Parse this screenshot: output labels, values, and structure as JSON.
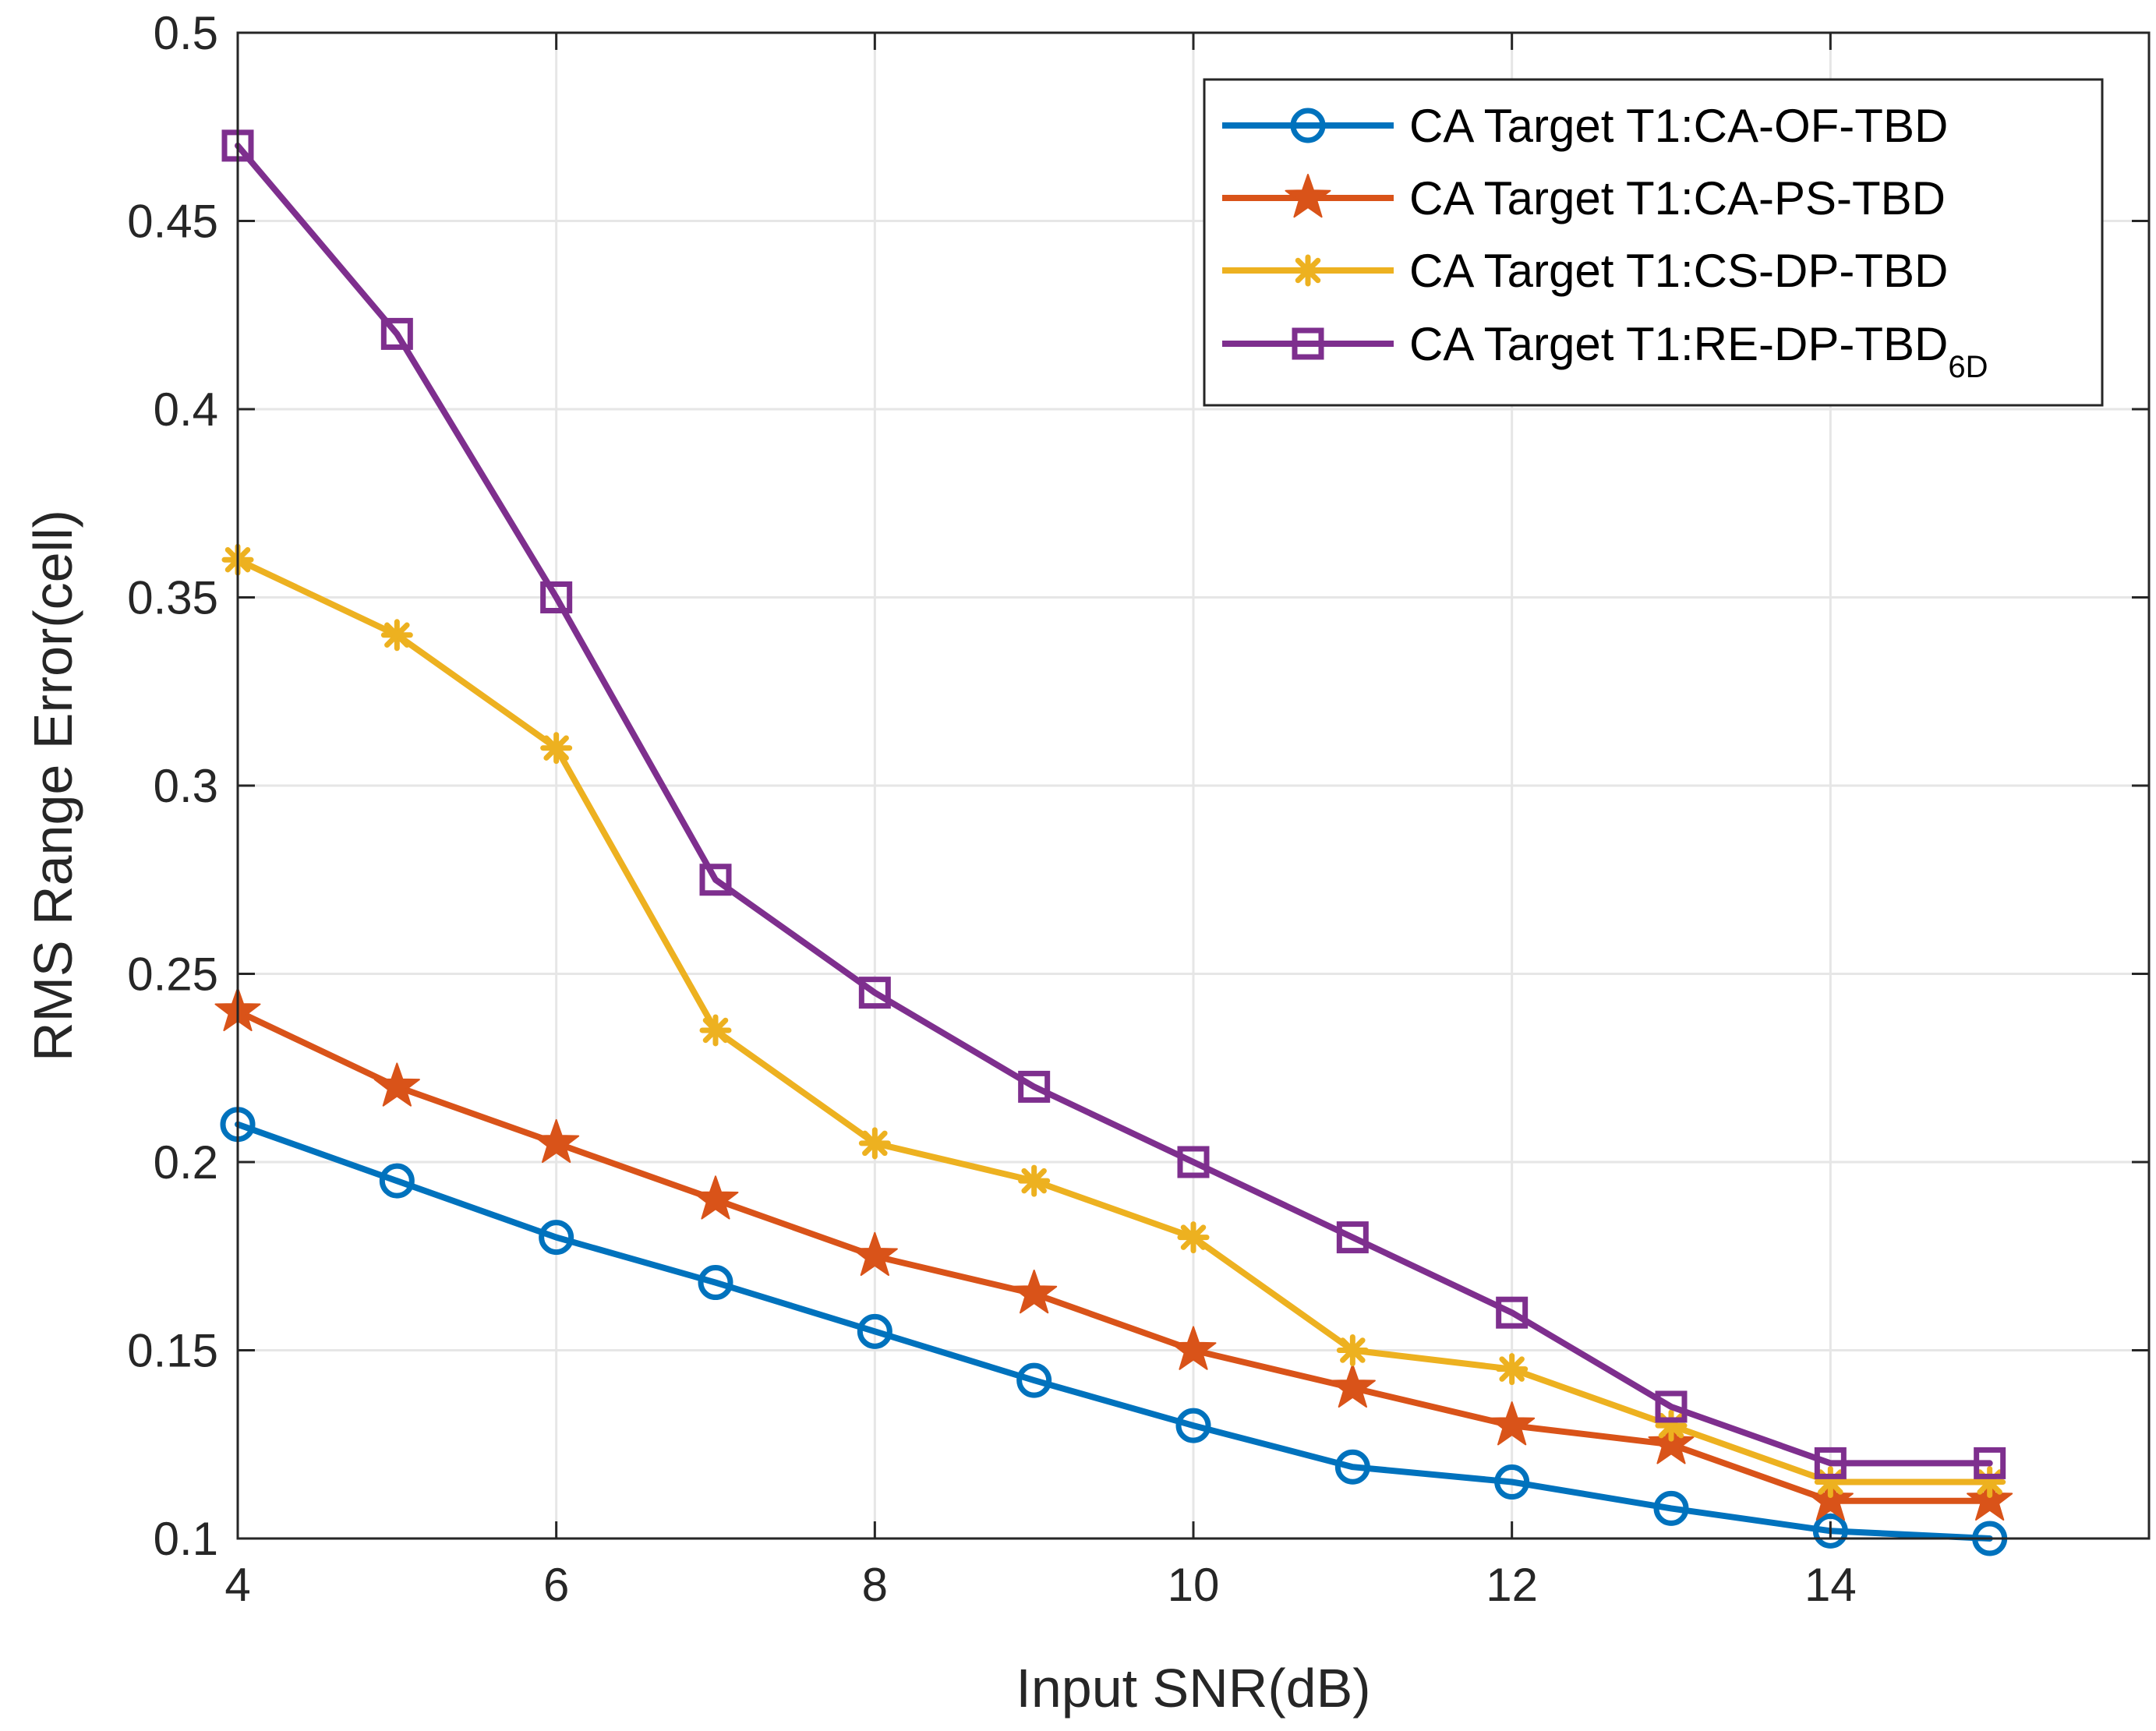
{
  "chart_data": {
    "type": "line",
    "xlabel": "Input SNR(dB)",
    "ylabel": "RMS Range Error(cell)",
    "xlim": [
      4,
      16
    ],
    "ylim": [
      0.1,
      0.5
    ],
    "xticks": [
      4,
      6,
      8,
      10,
      12,
      14
    ],
    "xtick_labels": [
      "4",
      "6",
      "8",
      "10",
      "12",
      "14"
    ],
    "yticks": [
      0.1,
      0.15,
      0.2,
      0.25,
      0.3,
      0.35,
      0.4,
      0.45,
      0.5
    ],
    "ytick_labels": [
      "0.1",
      "0.15",
      "0.2",
      "0.25",
      "0.3",
      "0.35",
      "0.4",
      "0.45",
      "0.5"
    ],
    "grid": true,
    "legend_position": "top-right",
    "x": [
      4,
      5,
      6,
      7,
      8,
      9,
      10,
      11,
      12,
      13,
      14,
      15
    ],
    "series": [
      {
        "name": "CA Target T1:CA-OF-TBD",
        "label_main": "CA Target T1:CA-OF-TBD",
        "label_sub": "",
        "color": "#0072BD",
        "marker": "circle",
        "values": [
          0.21,
          0.195,
          0.18,
          0.168,
          0.155,
          0.142,
          0.13,
          0.119,
          0.115,
          0.108,
          0.102,
          0.1
        ]
      },
      {
        "name": "CA Target T1:CA-PS-TBD",
        "label_main": "CA Target T1:CA-PS-TBD",
        "label_sub": "",
        "color": "#D95319",
        "marker": "star",
        "values": [
          0.24,
          0.22,
          0.205,
          0.19,
          0.175,
          0.165,
          0.15,
          0.14,
          0.13,
          0.125,
          0.11,
          0.11
        ]
      },
      {
        "name": "CA Target T1:CS-DP-TBD",
        "label_main": "CA Target T1:CS-DP-TBD",
        "label_sub": "",
        "color": "#EDB120",
        "marker": "asterisk",
        "values": [
          0.36,
          0.34,
          0.31,
          0.235,
          0.205,
          0.195,
          0.18,
          0.15,
          0.145,
          0.13,
          0.115,
          0.115
        ]
      },
      {
        "name": "CA Target T1:RE-DP-TBD6D",
        "label_main": "CA Target T1:RE-DP-TBD",
        "label_sub": "6D",
        "color": "#7E2F8E",
        "marker": "square",
        "values": [
          0.47,
          0.42,
          0.35,
          0.275,
          0.245,
          0.22,
          0.2,
          0.18,
          0.16,
          0.135,
          0.12,
          0.12
        ]
      }
    ]
  }
}
